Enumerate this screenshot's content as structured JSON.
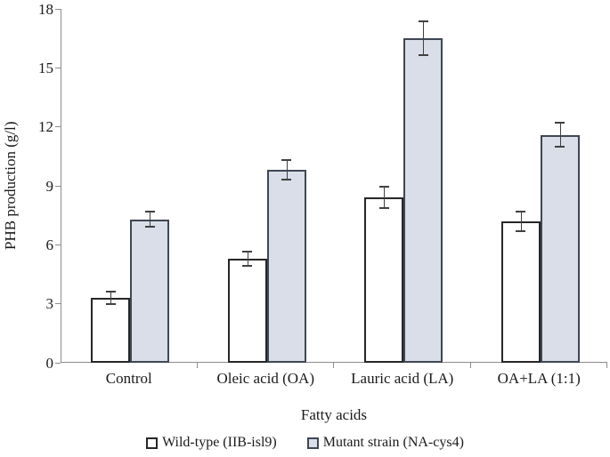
{
  "chart_data": {
    "type": "bar",
    "title": "",
    "xlabel": "Fatty acids",
    "ylabel": "PHB production (g/l)",
    "ylim": [
      0,
      18
    ],
    "yticks": [
      0,
      3,
      6,
      9,
      12,
      15,
      18
    ],
    "grid": false,
    "legend_position": "bottom",
    "categories": [
      "Control",
      "Oleic acid (OA)",
      "Lauric acid (LA)",
      "OA+LA (1:1)"
    ],
    "series": [
      {
        "name": "Wild-type (IIB-isl9)",
        "values": [
          3.3,
          5.3,
          8.4,
          7.2
        ],
        "errors": [
          0.3,
          0.35,
          0.55,
          0.5
        ],
        "fill": "#ffffff",
        "border": "#262626"
      },
      {
        "name": "Mutant strain (NA-cys4)",
        "values": [
          7.3,
          9.8,
          16.5,
          11.6
        ],
        "errors": [
          0.4,
          0.5,
          0.85,
          0.6
        ],
        "fill": "#d9dee8",
        "border": "#3f4755"
      }
    ],
    "colors": {
      "axis": "#8c8c8c",
      "error": "#404040",
      "text": "#1a1a1a"
    }
  }
}
